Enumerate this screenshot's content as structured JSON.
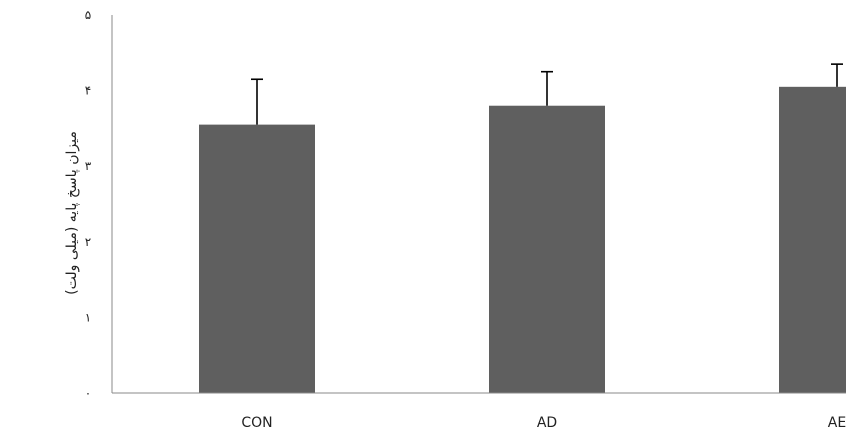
{
  "chart_data": {
    "type": "bar",
    "title": "",
    "xlabel": "",
    "ylabel": "میزان پاسخ پایه (میلی ولت)",
    "categories": [
      "CON",
      "AD",
      "AE"
    ],
    "values": [
      3.55,
      3.8,
      4.05
    ],
    "errors": [
      0.6,
      0.45,
      0.3
    ],
    "ylim": [
      0,
      5
    ],
    "yticks": [
      0,
      1,
      2,
      3,
      4,
      5
    ],
    "ytick_labels": [
      "۰",
      "۱",
      "۲",
      "۳",
      "۴",
      "۵"
    ],
    "grid": false,
    "legend": "none",
    "bar_color": "#5f5f5f",
    "errorbar_color": "#000000",
    "axis_color": "#8a8a8a"
  }
}
